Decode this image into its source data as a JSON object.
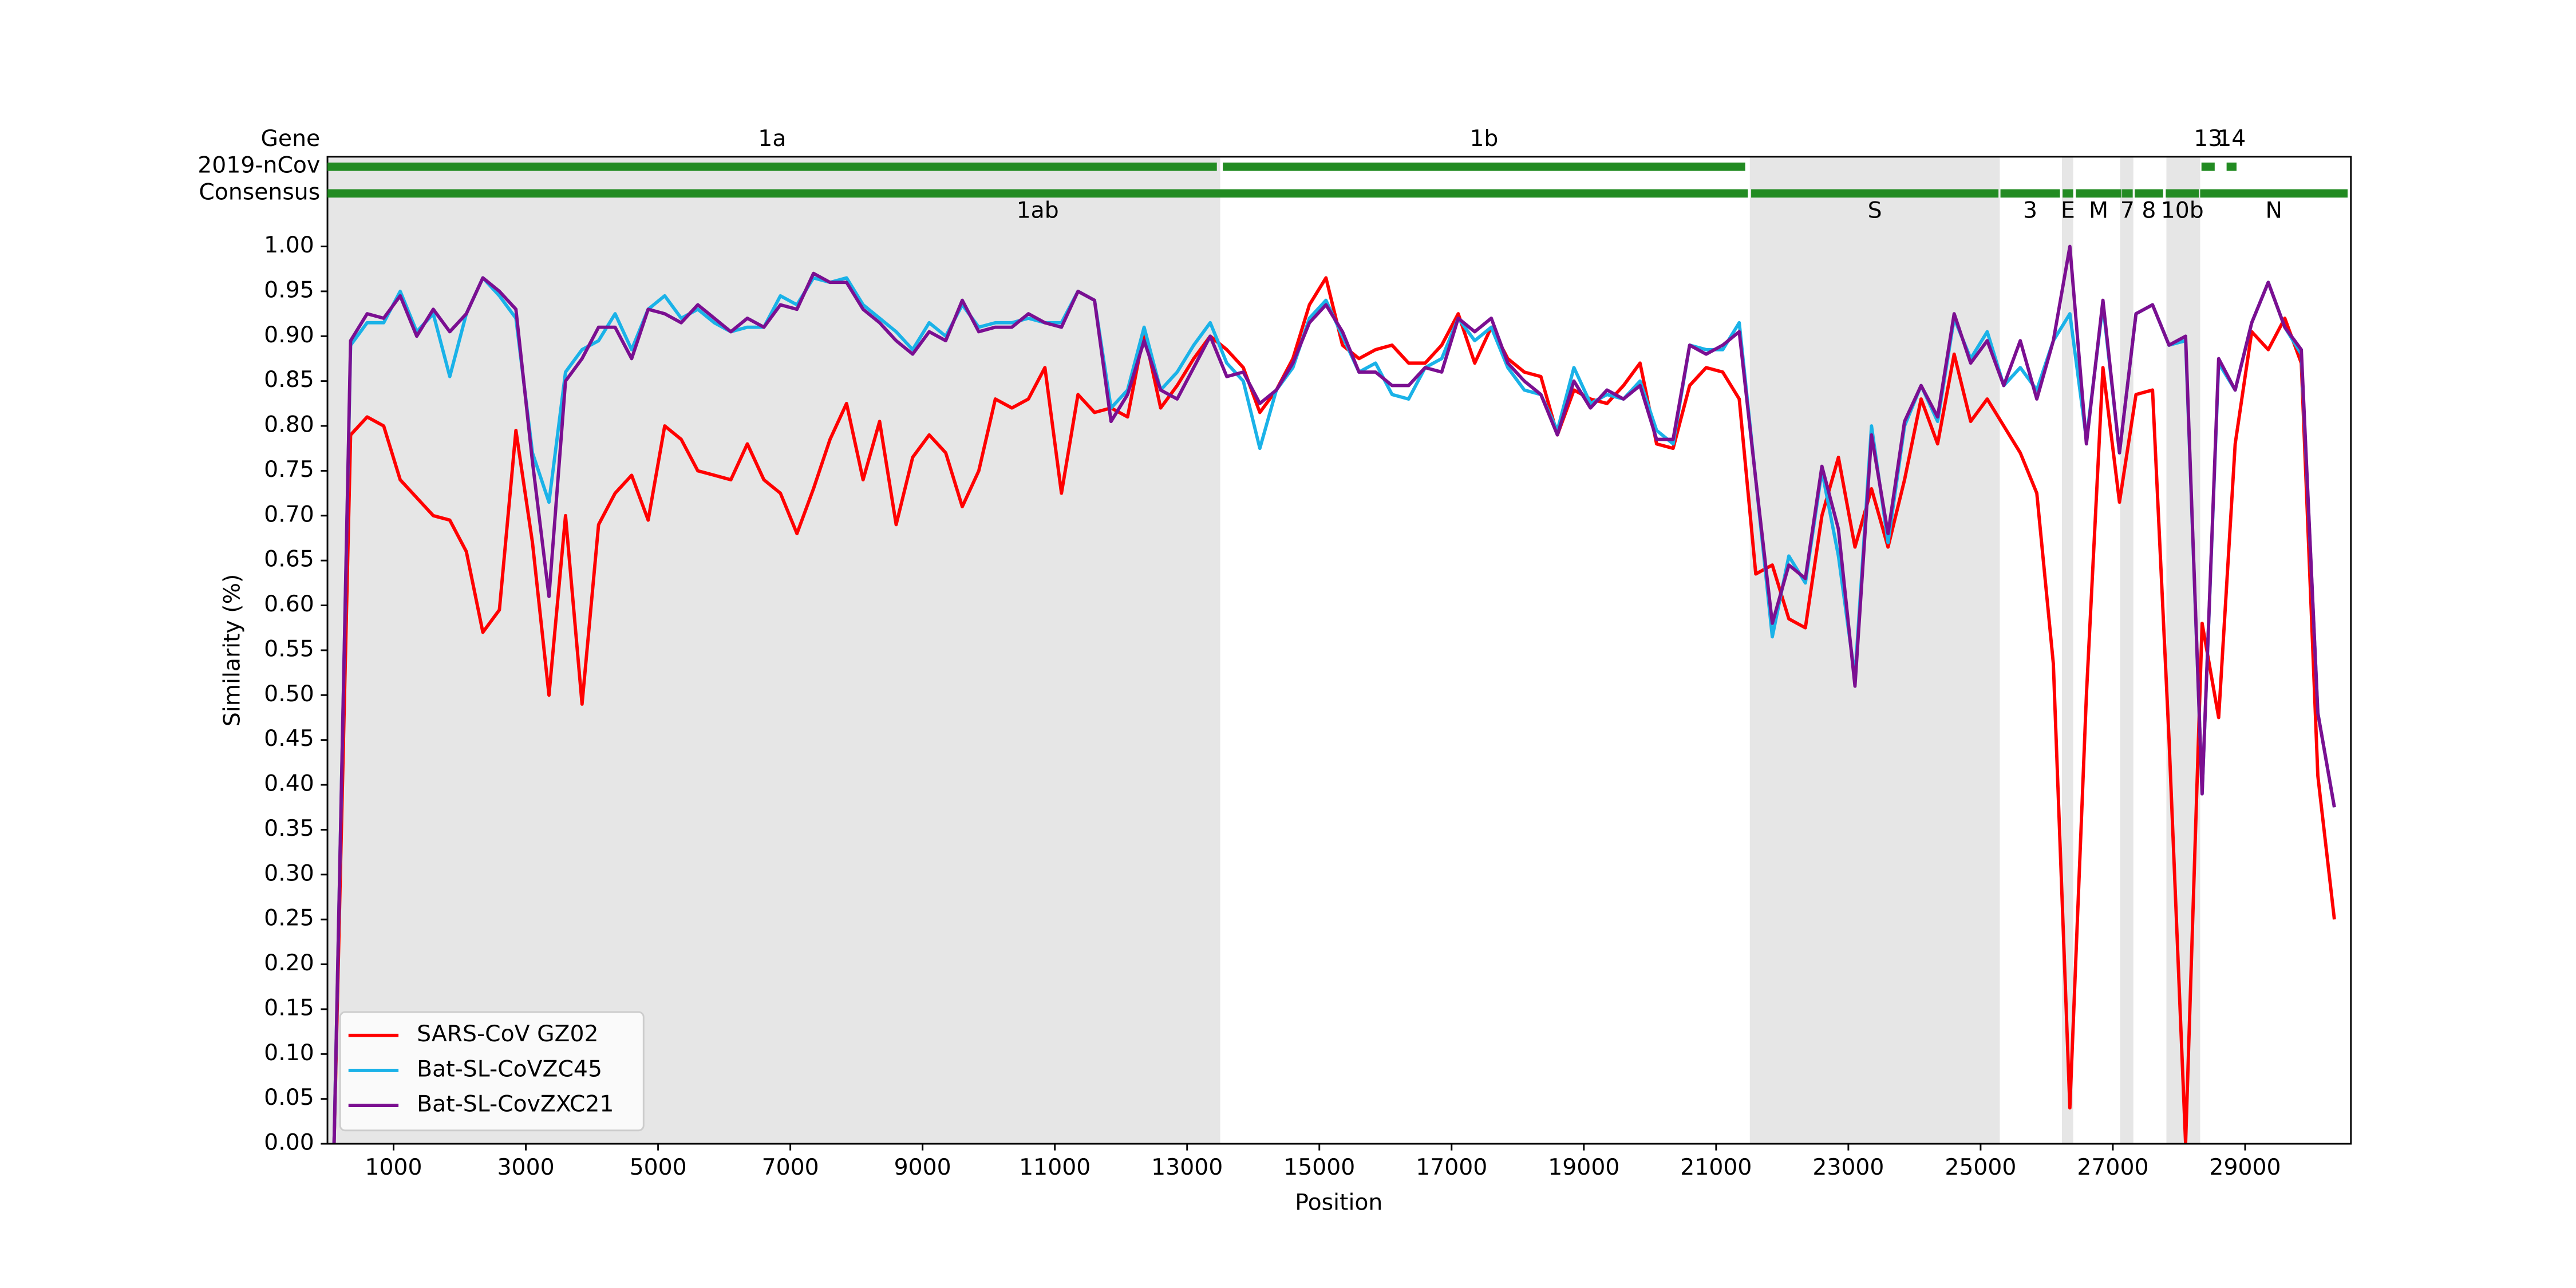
{
  "chart_data": {
    "type": "line",
    "xlabel": "Position",
    "ylabel": "Similarity (%)",
    "xlim": [
      0,
      30600
    ],
    "ylim": [
      0,
      1.1
    ],
    "xticks": [
      1000,
      3000,
      5000,
      7000,
      9000,
      11000,
      13000,
      15000,
      17000,
      19000,
      21000,
      23000,
      25000,
      27000,
      29000
    ],
    "yticks": [
      {
        "value": 0,
        "label": "0.00"
      },
      0.05,
      {
        "value": 0.1,
        "label": "0.10"
      },
      0.15,
      {
        "value": 0.2,
        "label": "0.20"
      },
      0.25,
      {
        "value": 0.3,
        "label": "0.30"
      },
      0.35,
      {
        "value": 0.4,
        "label": "0.40"
      },
      0.45,
      {
        "value": 0.5,
        "label": "0.50"
      },
      0.55,
      {
        "value": 0.6,
        "label": "0.60"
      },
      0.65,
      {
        "value": 0.7,
        "label": "0.70"
      },
      0.75,
      {
        "value": 0.8,
        "label": "0.80"
      },
      0.85,
      {
        "value": 0.9,
        "label": "0.90"
      },
      0.95,
      {
        "value": 1,
        "label": "1.00"
      }
    ],
    "legend": "lower left",
    "shade_color": "#e6e6e6",
    "shaded_regions": [
      [
        0,
        13500
      ],
      [
        21510,
        25290
      ],
      [
        26230,
        26400
      ],
      [
        27110,
        27310
      ],
      [
        27810,
        28320
      ]
    ],
    "track_header": "Gene",
    "gene_color": "#228b22",
    "tracks": [
      {
        "name": "2019-nCov",
        "genes": [
          {
            "name": "1a",
            "start": 0,
            "end": 13450
          },
          {
            "name": "1b",
            "start": 13540,
            "end": 21440
          },
          {
            "name": "13",
            "start": 28340,
            "end": 28540
          },
          {
            "name": "14",
            "start": 28720,
            "end": 28870
          }
        ]
      },
      {
        "name": "Consensus",
        "genes": [
          {
            "name": "1ab",
            "start": 0,
            "end": 21480
          },
          {
            "name": "S",
            "start": 21530,
            "end": 25270
          },
          {
            "name": "3",
            "start": 25300,
            "end": 26200
          },
          {
            "name": "E",
            "start": 26240,
            "end": 26400
          },
          {
            "name": "M",
            "start": 26440,
            "end": 27130
          },
          {
            "name": "7",
            "start": 27140,
            "end": 27300
          },
          {
            "name": "8",
            "start": 27330,
            "end": 27760
          },
          {
            "name": "10b",
            "start": 27800,
            "end": 28300
          },
          {
            "name": "N",
            "start": 28320,
            "end": 30550
          }
        ]
      }
    ],
    "x": [
      100,
      350,
      600,
      850,
      1100,
      1350,
      1600,
      1850,
      2100,
      2350,
      2600,
      2850,
      3100,
      3350,
      3600,
      3850,
      4100,
      4350,
      4600,
      4850,
      5100,
      5350,
      5600,
      5850,
      6100,
      6350,
      6600,
      6850,
      7100,
      7350,
      7600,
      7850,
      8100,
      8350,
      8600,
      8850,
      9100,
      9350,
      9600,
      9850,
      10100,
      10350,
      10600,
      10850,
      11100,
      11350,
      11600,
      11850,
      12100,
      12350,
      12600,
      12850,
      13100,
      13350,
      13600,
      13850,
      14100,
      14350,
      14600,
      14850,
      15100,
      15350,
      15600,
      15850,
      16100,
      16350,
      16600,
      16850,
      17100,
      17350,
      17600,
      17850,
      18100,
      18350,
      18600,
      18850,
      19100,
      19350,
      19600,
      19850,
      20100,
      20350,
      20600,
      20850,
      21100,
      21350,
      21600,
      21850,
      22100,
      22350,
      22600,
      22850,
      23100,
      23350,
      23600,
      23850,
      24100,
      24350,
      24600,
      24850,
      25100,
      25350,
      25600,
      25850,
      26100,
      26350,
      26600,
      26850,
      27100,
      27350,
      27600,
      27850,
      28100,
      28350,
      28600,
      28850,
      29100,
      29350,
      29600,
      29850,
      30100,
      30350
    ],
    "series": [
      {
        "name": "SARS-CoV GZ02",
        "color": "#ff0000",
        "values": [
          0,
          0.79,
          0.81,
          0.8,
          0.74,
          0.72,
          0.7,
          0.695,
          0.66,
          0.57,
          0.595,
          0.795,
          0.67,
          0.5,
          0.7,
          0.49,
          0.69,
          0.725,
          0.745,
          0.695,
          0.8,
          0.785,
          0.75,
          0.745,
          0.74,
          0.78,
          0.74,
          0.725,
          0.68,
          0.73,
          0.785,
          0.825,
          0.74,
          0.805,
          0.69,
          0.765,
          0.79,
          0.77,
          0.71,
          0.75,
          0.83,
          0.82,
          0.83,
          0.865,
          0.725,
          0.835,
          0.815,
          0.82,
          0.81,
          0.905,
          0.82,
          0.845,
          0.875,
          0.9,
          0.885,
          0.865,
          0.815,
          0.84,
          0.875,
          0.935,
          0.965,
          0.89,
          0.875,
          0.885,
          0.89,
          0.87,
          0.87,
          0.89,
          0.925,
          0.87,
          0.91,
          0.875,
          0.86,
          0.855,
          0.79,
          0.84,
          0.83,
          0.825,
          0.845,
          0.87,
          0.78,
          0.775,
          0.845,
          0.865,
          0.86,
          0.83,
          0.635,
          0.645,
          0.585,
          0.575,
          0.7,
          0.765,
          0.665,
          0.73,
          0.665,
          0.74,
          0.83,
          0.78,
          0.88,
          0.805,
          0.83,
          0.8,
          0.77,
          0.725,
          0.535,
          0.04,
          0.5,
          0.865,
          0.715,
          0.835,
          0.84,
          0.45,
          0,
          0.58,
          0.475,
          0.78,
          0.905,
          0.885,
          0.92,
          0.87,
          0.41,
          0.25
        ]
      },
      {
        "name": "Bat-SL-CoVZC45",
        "color": "#1ab2e8",
        "values": [
          0,
          0.89,
          0.915,
          0.915,
          0.95,
          0.905,
          0.925,
          0.855,
          0.925,
          0.965,
          0.945,
          0.92,
          0.77,
          0.715,
          0.86,
          0.885,
          0.895,
          0.925,
          0.885,
          0.93,
          0.945,
          0.92,
          0.93,
          0.915,
          0.905,
          0.91,
          0.91,
          0.945,
          0.935,
          0.965,
          0.96,
          0.965,
          0.935,
          0.92,
          0.905,
          0.885,
          0.915,
          0.9,
          0.935,
          0.91,
          0.915,
          0.915,
          0.92,
          0.915,
          0.915,
          0.95,
          0.94,
          0.82,
          0.84,
          0.91,
          0.84,
          0.86,
          0.89,
          0.915,
          0.87,
          0.85,
          0.775,
          0.84,
          0.865,
          0.92,
          0.94,
          0.9,
          0.86,
          0.87,
          0.835,
          0.83,
          0.865,
          0.875,
          0.92,
          0.895,
          0.91,
          0.865,
          0.84,
          0.835,
          0.795,
          0.865,
          0.825,
          0.835,
          0.83,
          0.85,
          0.795,
          0.78,
          0.89,
          0.885,
          0.885,
          0.915,
          0.74,
          0.565,
          0.655,
          0.625,
          0.75,
          0.655,
          0.52,
          0.8,
          0.67,
          0.8,
          0.845,
          0.805,
          0.92,
          0.875,
          0.905,
          0.845,
          0.865,
          0.84,
          0.895,
          0.925,
          0.785,
          0.935,
          0.77,
          0.925,
          0.935,
          0.89,
          0.895,
          0.39,
          0.87,
          0.84,
          0.915,
          0.96,
          0.91,
          0.88,
          0.48,
          0.375
        ]
      },
      {
        "name": "Bat-SL-CovZXC21",
        "color": "#7b0f91",
        "values": [
          0,
          0.895,
          0.925,
          0.92,
          0.945,
          0.9,
          0.93,
          0.905,
          0.925,
          0.965,
          0.95,
          0.93,
          0.76,
          0.61,
          0.85,
          0.875,
          0.91,
          0.91,
          0.875,
          0.93,
          0.925,
          0.915,
          0.935,
          0.92,
          0.905,
          0.92,
          0.91,
          0.935,
          0.93,
          0.97,
          0.96,
          0.96,
          0.93,
          0.915,
          0.895,
          0.88,
          0.905,
          0.895,
          0.94,
          0.905,
          0.91,
          0.91,
          0.925,
          0.915,
          0.91,
          0.95,
          0.94,
          0.805,
          0.835,
          0.895,
          0.84,
          0.83,
          0.865,
          0.9,
          0.855,
          0.86,
          0.825,
          0.84,
          0.87,
          0.915,
          0.935,
          0.905,
          0.86,
          0.86,
          0.845,
          0.845,
          0.865,
          0.86,
          0.92,
          0.905,
          0.92,
          0.87,
          0.85,
          0.835,
          0.79,
          0.85,
          0.82,
          0.84,
          0.83,
          0.845,
          0.785,
          0.785,
          0.89,
          0.88,
          0.89,
          0.905,
          0.74,
          0.58,
          0.645,
          0.63,
          0.755,
          0.685,
          0.51,
          0.79,
          0.68,
          0.805,
          0.845,
          0.81,
          0.925,
          0.87,
          0.895,
          0.845,
          0.895,
          0.83,
          0.895,
          1,
          0.78,
          0.94,
          0.77,
          0.925,
          0.935,
          0.89,
          0.9,
          0.39,
          0.875,
          0.84,
          0.915,
          0.96,
          0.91,
          0.885,
          0.48,
          0.375
        ]
      }
    ]
  }
}
